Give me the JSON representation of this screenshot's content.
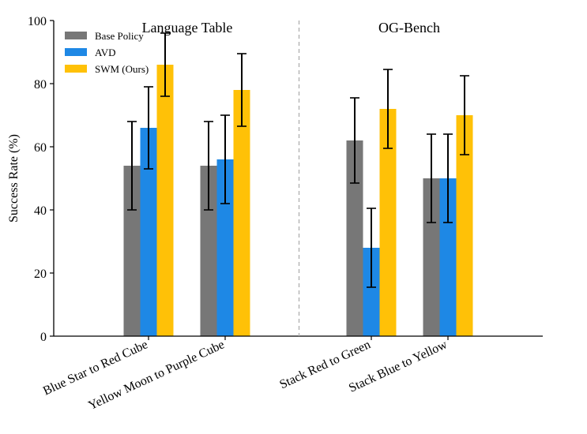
{
  "chart_data": {
    "type": "bar",
    "ylabel": "Success Rate (%)",
    "xlabel": "",
    "ylim": [
      0,
      100
    ],
    "yticks": [
      0,
      20,
      40,
      60,
      80,
      100
    ],
    "grid": false,
    "legend_position": "top-left",
    "categories": [
      "Blue Star to Red Cube",
      "Yellow Moon to Purple Cube",
      "Stack Red to Green",
      "Stack Blue to Yellow"
    ],
    "groups": [
      {
        "title": "Language Table",
        "categories": [
          0,
          1
        ]
      },
      {
        "title": "OG-Bench",
        "categories": [
          2,
          3
        ]
      }
    ],
    "series": [
      {
        "name": "Base Policy",
        "color": "#777777",
        "values": [
          54,
          54,
          62,
          50
        ],
        "errors": [
          14,
          14,
          13.5,
          14
        ]
      },
      {
        "name": "AVD",
        "color": "#1e88e5",
        "values": [
          66,
          56,
          28,
          50
        ],
        "errors": [
          13,
          14,
          12.5,
          14
        ]
      },
      {
        "name": "SWM (Ours)",
        "color": "#ffc107",
        "values": [
          86,
          78,
          72,
          70
        ],
        "errors": [
          10,
          11.5,
          12.5,
          12.5
        ]
      }
    ]
  }
}
